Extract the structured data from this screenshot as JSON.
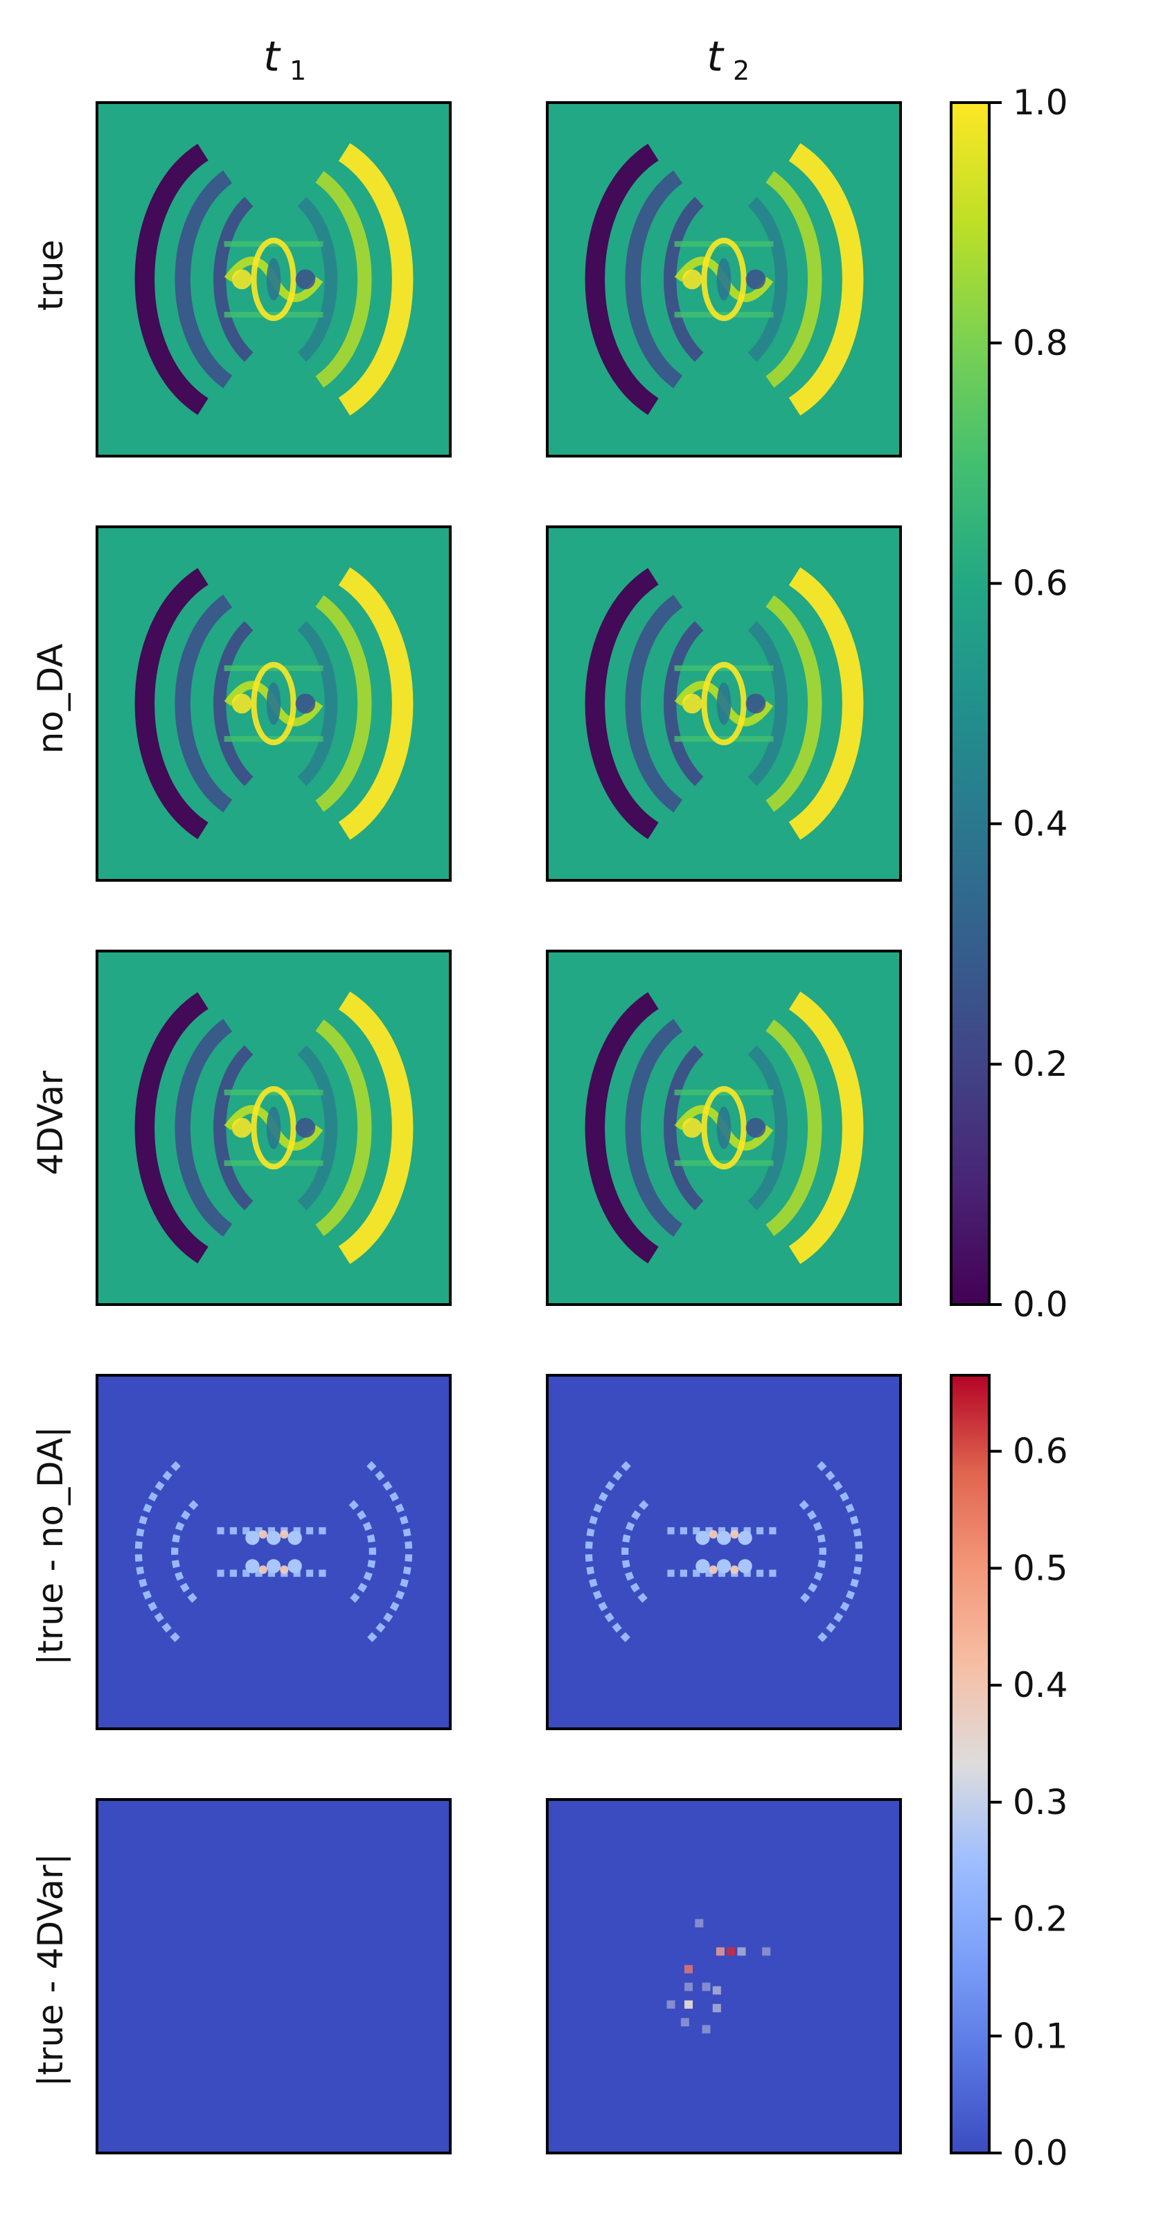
{
  "chart_data": {
    "type": "heatmap",
    "column_titles": [
      "t",
      "t"
    ],
    "column_subscripts": [
      "1",
      "2"
    ],
    "row_labels": [
      "true",
      "no_DA",
      "4DVar",
      "|true - no_DA|",
      "|true - 4DVar|"
    ],
    "colorbars": [
      {
        "name": "field colorbar",
        "colormap": "viridis",
        "range": [
          0.0,
          1.0
        ],
        "ticks": [
          0.0,
          0.2,
          0.4,
          0.6,
          0.8,
          1.0
        ],
        "tick_labels": [
          "0.0",
          "0.2",
          "0.4",
          "0.6",
          "0.8",
          "1.0"
        ],
        "applies_to_rows": [
          "true",
          "no_DA",
          "4DVar"
        ]
      },
      {
        "name": "error colorbar",
        "colormap": "coolwarm",
        "range": [
          0.0,
          0.665
        ],
        "ticks": [
          0.0,
          0.1,
          0.2,
          0.3,
          0.4,
          0.5,
          0.6
        ],
        "tick_labels": [
          "0.0",
          "0.1",
          "0.2",
          "0.3",
          "0.4",
          "0.5",
          "0.6"
        ],
        "applies_to_rows": [
          "|true - no_DA|",
          "|true - 4DVar|"
        ]
      }
    ],
    "fields": {
      "background_value": 0.55,
      "description_values": {
        "ring_left_min": 0.05,
        "ring_right_max": 0.95
      }
    },
    "error_points_t2_true_minus_4DVar": [
      {
        "x": 0.43,
        "y": 0.35,
        "v": 0.15
      },
      {
        "x": 0.49,
        "y": 0.43,
        "v": 0.45
      },
      {
        "x": 0.52,
        "y": 0.43,
        "v": 0.6
      },
      {
        "x": 0.55,
        "y": 0.43,
        "v": 0.2
      },
      {
        "x": 0.62,
        "y": 0.43,
        "v": 0.15
      },
      {
        "x": 0.4,
        "y": 0.48,
        "v": 0.5
      },
      {
        "x": 0.45,
        "y": 0.53,
        "v": 0.15
      },
      {
        "x": 0.4,
        "y": 0.53,
        "v": 0.15
      },
      {
        "x": 0.48,
        "y": 0.54,
        "v": 0.2
      },
      {
        "x": 0.35,
        "y": 0.58,
        "v": 0.15
      },
      {
        "x": 0.4,
        "y": 0.58,
        "v": 0.35
      },
      {
        "x": 0.48,
        "y": 0.59,
        "v": 0.2
      },
      {
        "x": 0.39,
        "y": 0.63,
        "v": 0.15
      },
      {
        "x": 0.45,
        "y": 0.65,
        "v": 0.15
      }
    ]
  }
}
